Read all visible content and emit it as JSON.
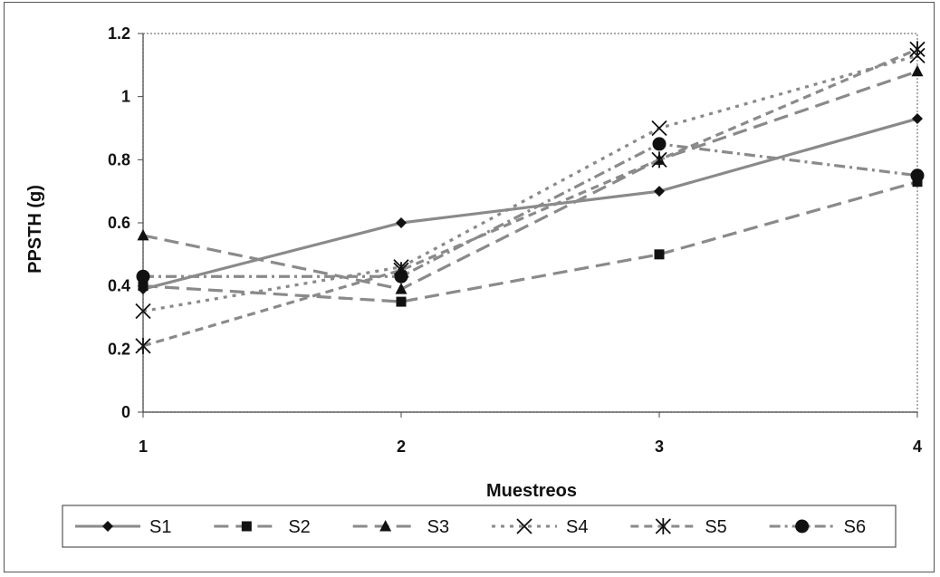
{
  "chart_data": {
    "type": "line",
    "title": "",
    "xlabel": "Muestreos",
    "ylabel": "PPSTH (g)",
    "x": [
      1,
      2,
      3,
      4
    ],
    "xlim": [
      1,
      4
    ],
    "ylim": [
      0,
      1.2
    ],
    "yticks": [
      0,
      0.2,
      0.4,
      0.6,
      0.8,
      1,
      1.2
    ],
    "ytick_labels": [
      "0",
      "0.2",
      "0.4",
      "0.6",
      "0.8",
      "1",
      "1.2"
    ],
    "xtick_labels": [
      "1",
      "2",
      "3",
      "4"
    ],
    "grid": false,
    "legend_position": "bottom",
    "series": [
      {
        "name": "S1",
        "values": [
          0.39,
          0.6,
          0.7,
          0.93
        ],
        "marker": "diamond",
        "dash": "solid"
      },
      {
        "name": "S2",
        "values": [
          0.4,
          0.35,
          0.5,
          0.73
        ],
        "marker": "square",
        "dash": "long-dash"
      },
      {
        "name": "S3",
        "values": [
          0.56,
          0.39,
          0.8,
          1.08
        ],
        "marker": "triangle",
        "dash": "long-dash"
      },
      {
        "name": "S4",
        "values": [
          0.32,
          0.46,
          0.9,
          1.13
        ],
        "marker": "x",
        "dash": "short-dash"
      },
      {
        "name": "S5",
        "values": [
          0.21,
          0.45,
          0.8,
          1.15
        ],
        "marker": "asterisk",
        "dash": "dash"
      },
      {
        "name": "S6",
        "values": [
          0.43,
          0.43,
          0.85,
          0.75
        ],
        "marker": "circle",
        "dash": "dash-dot"
      }
    ],
    "colors": {
      "line": "#8a8a8a",
      "marker": "#111111"
    }
  }
}
